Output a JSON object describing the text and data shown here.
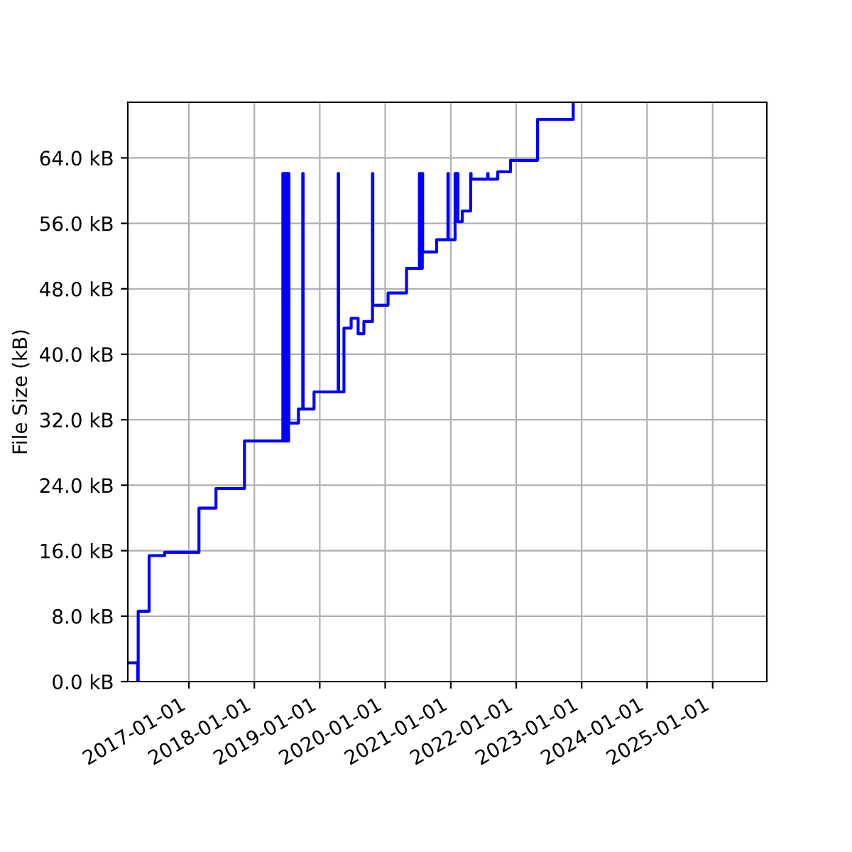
{
  "chart_data": {
    "type": "step",
    "ylabel": "File Size (kB)",
    "grid": true,
    "line_style": "solid",
    "x": [
      "2016-01-26",
      "2016-03-21",
      "2016-03-24",
      "2016-05-24",
      "2016-08-19",
      "2017-02-26",
      "2017-06-01",
      "2017-11-07",
      "2018-06-09",
      "2018-06-11",
      "2018-06-17",
      "2018-06-19",
      "2018-06-25",
      "2018-06-27",
      "2018-07-03",
      "2018-07-05",
      "2018-07-11",
      "2018-07-13",
      "2018-09-04",
      "2018-09-28",
      "2018-09-30",
      "2018-11-30",
      "2019-04-14",
      "2019-04-16",
      "2019-05-16",
      "2019-06-25",
      "2019-08-03",
      "2019-09-04",
      "2019-10-22",
      "2019-10-24",
      "2020-01-17",
      "2020-04-29",
      "2020-07-10",
      "2020-07-12",
      "2020-07-18",
      "2020-07-20",
      "2020-07-26",
      "2020-07-28",
      "2020-10-14",
      "2020-12-16",
      "2020-12-18",
      "2021-01-25",
      "2021-02-10",
      "2021-03-06",
      "2021-04-22",
      "2021-04-24",
      "2021-07-26",
      "2021-07-28",
      "2021-09-20",
      "2021-11-30",
      "2022-04-30",
      "2022-11-15"
    ],
    "series": [
      {
        "color": "#0000ff",
        "values": [
          2.3,
          0,
          8.6,
          15.4,
          15.8,
          21.2,
          23.6,
          29.4,
          62.1,
          29.4,
          62.1,
          29.4,
          62.1,
          29.4,
          62.1,
          29.4,
          62.1,
          31.6,
          33.3,
          62.1,
          33.3,
          35.4,
          62.1,
          35.4,
          43.2,
          44.4,
          42.5,
          44.0,
          62.1,
          46.0,
          47.5,
          50.5,
          62.1,
          50.5,
          62.1,
          50.5,
          62.1,
          52.5,
          54.0,
          62.1,
          54.0,
          62.1,
          56.2,
          57.5,
          62.1,
          61.4,
          62.1,
          61.4,
          62.3,
          63.7,
          68.7,
          70.8
        ]
      }
    ],
    "xlim": [
      "2016-01-26",
      "2025-10-30"
    ],
    "xticks": [
      {
        "value": "2017-01-01",
        "label": "2017-01-01"
      },
      {
        "value": "2018-01-01",
        "label": "2018-01-01"
      },
      {
        "value": "2019-01-01",
        "label": "2019-01-01"
      },
      {
        "value": "2020-01-01",
        "label": "2020-01-01"
      },
      {
        "value": "2021-01-01",
        "label": "2021-01-01"
      },
      {
        "value": "2022-01-01",
        "label": "2022-01-01"
      },
      {
        "value": "2023-01-01",
        "label": "2023-01-01"
      },
      {
        "value": "2024-01-01",
        "label": "2024-01-01"
      },
      {
        "value": "2025-01-01",
        "label": "2025-01-01"
      }
    ],
    "ylim": [
      0,
      70.8
    ],
    "yticks": [
      {
        "value": 0,
        "label": "0.0 kB"
      },
      {
        "value": 8,
        "label": "8.0 kB"
      },
      {
        "value": 16,
        "label": "16.0 kB"
      },
      {
        "value": 24,
        "label": "24.0 kB"
      },
      {
        "value": 32,
        "label": "32.0 kB"
      },
      {
        "value": 40,
        "label": "40.0 kB"
      },
      {
        "value": 48,
        "label": "48.0 kB"
      },
      {
        "value": 56,
        "label": "56.0 kB"
      },
      {
        "value": 64,
        "label": "64.0 kB"
      }
    ]
  }
}
